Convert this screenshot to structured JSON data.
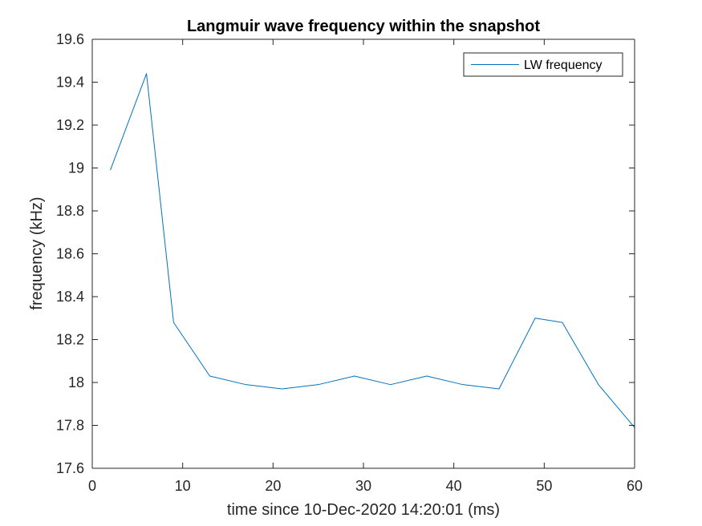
{
  "chart_data": {
    "type": "line",
    "title": "Langmuir wave frequency within the snapshot",
    "xlabel": "time since 10-Dec-2020 14:20:01 (ms)",
    "ylabel": "frequency (kHz)",
    "xlim": [
      0,
      60
    ],
    "ylim": [
      17.6,
      19.6
    ],
    "xticks": [
      0,
      10,
      20,
      30,
      40,
      50,
      60
    ],
    "xtick_labels": [
      "0",
      "10",
      "20",
      "30",
      "40",
      "50",
      "60"
    ],
    "yticks": [
      17.6,
      17.8,
      18,
      18.2,
      18.4,
      18.6,
      18.8,
      19,
      19.2,
      19.4,
      19.6
    ],
    "ytick_labels": [
      "17.6",
      "17.8",
      "18",
      "18.2",
      "18.4",
      "18.6",
      "18.8",
      "19",
      "19.2",
      "19.4",
      "19.6"
    ],
    "grid": false,
    "legend_position": "top-right",
    "series": [
      {
        "name": "LW frequency",
        "color": "#0072bd",
        "x": [
          2,
          6,
          9,
          13,
          17,
          21,
          25,
          29,
          33,
          37,
          41,
          45,
          49,
          52,
          56,
          60
        ],
        "y": [
          18.99,
          19.44,
          18.28,
          18.03,
          17.99,
          17.97,
          17.99,
          18.03,
          17.99,
          18.03,
          17.99,
          17.97,
          18.3,
          18.28,
          17.99,
          17.79
        ]
      }
    ]
  }
}
